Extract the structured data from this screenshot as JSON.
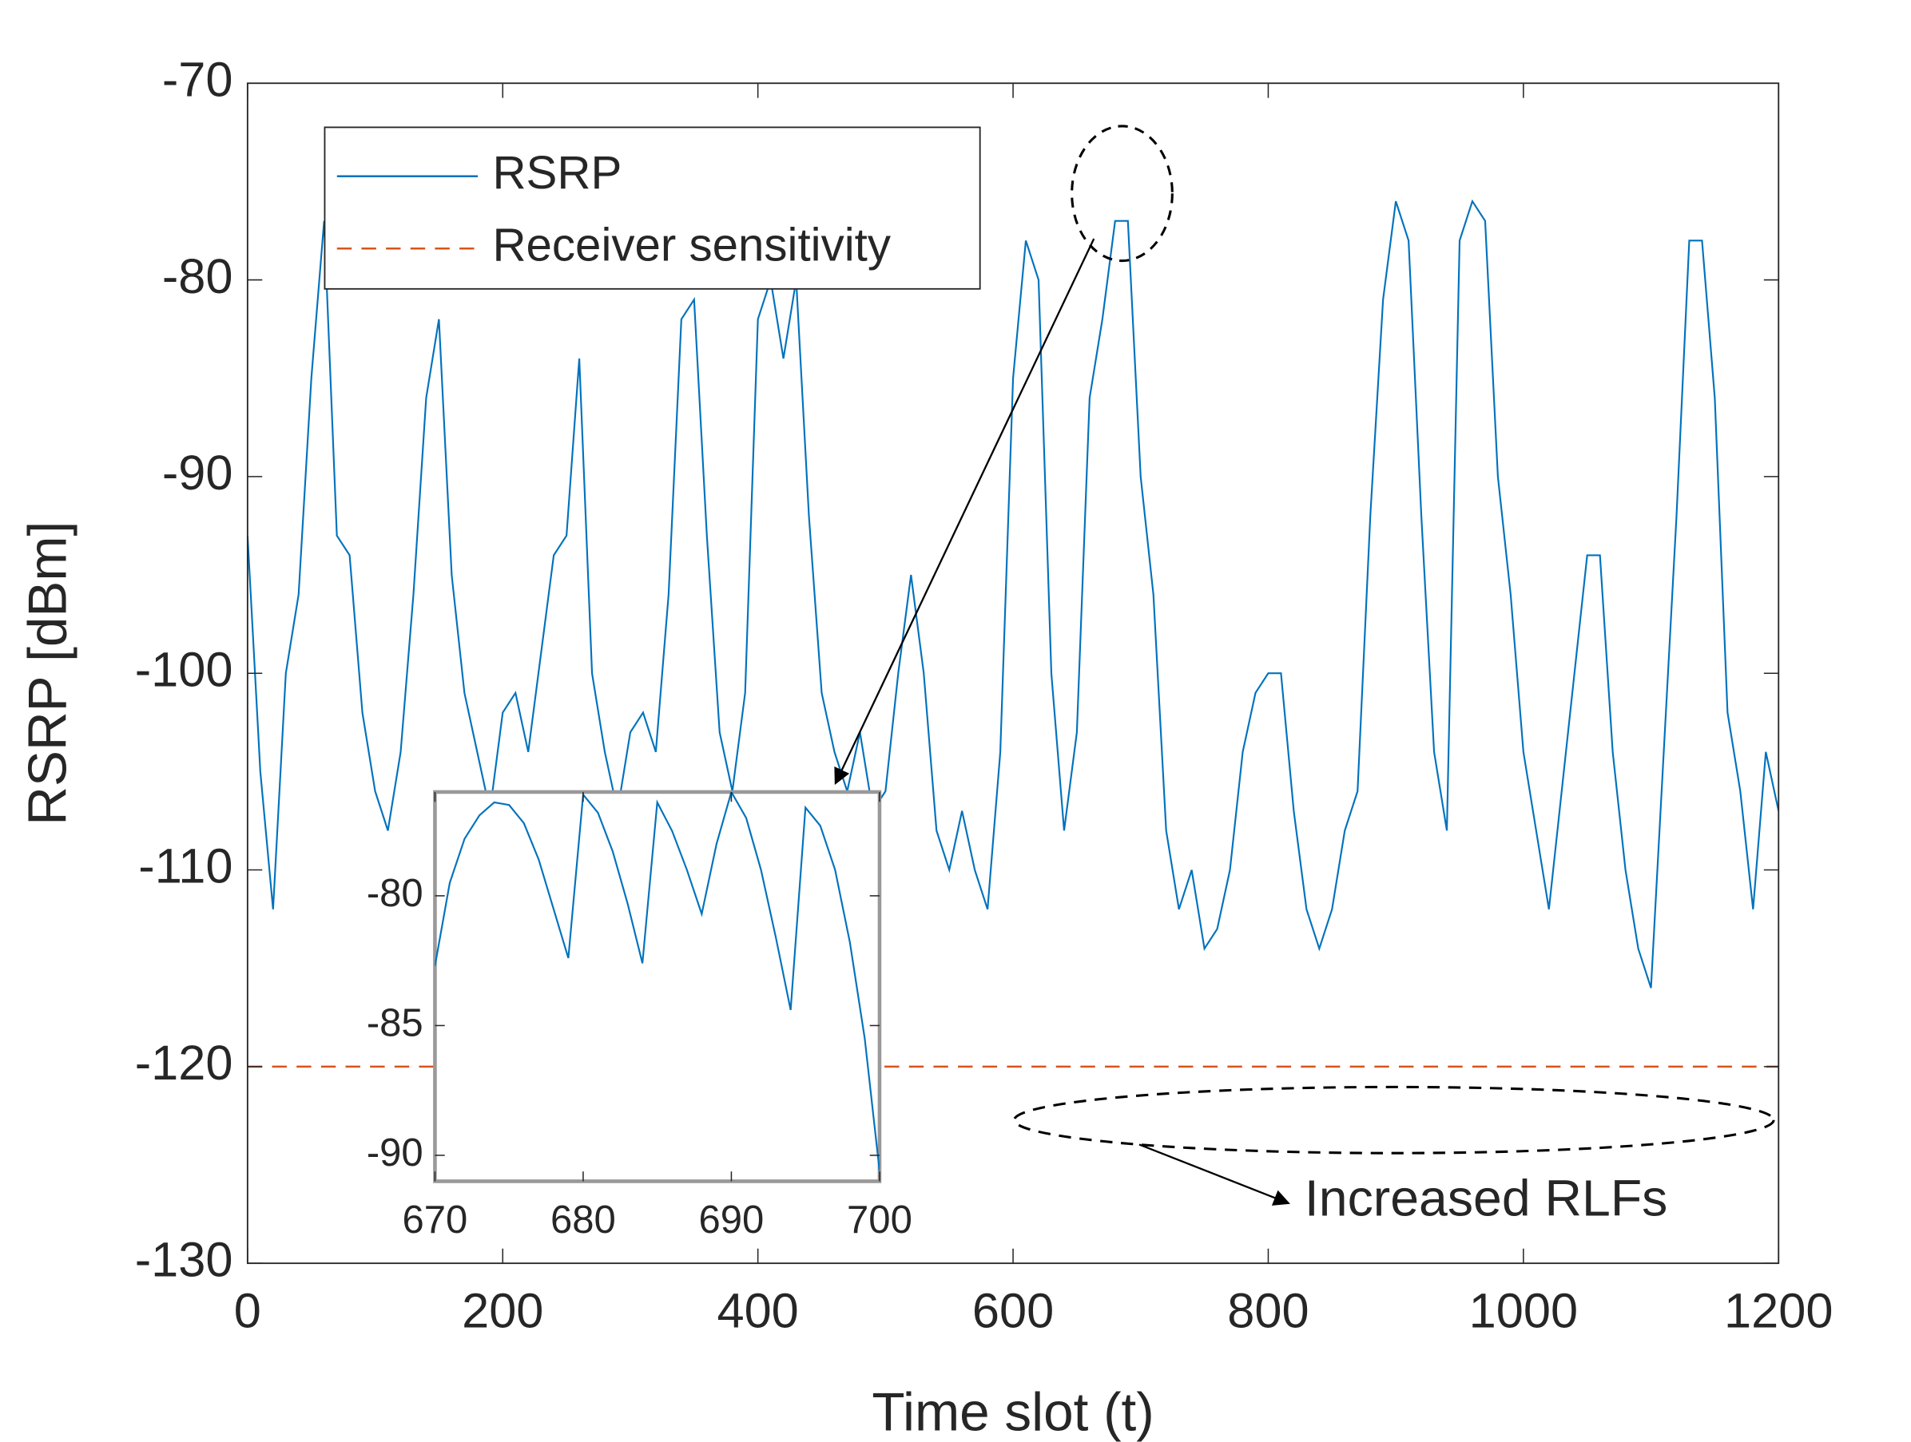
{
  "chart_data": [
    {
      "type": "line",
      "xlabel": "Time slot (t)",
      "ylabel": "RSRP [dBm]",
      "xlim": [
        0,
        1200
      ],
      "ylim": [
        -130,
        -70
      ],
      "xticks": [
        0,
        200,
        400,
        600,
        800,
        1000,
        1200
      ],
      "yticks": [
        -130,
        -120,
        -110,
        -100,
        -90,
        -80,
        -70
      ],
      "legend": "upper left",
      "annotation": "Increased RLFs",
      "series": [
        {
          "name": "RSRP",
          "color": "#0072bd",
          "x": [
            0,
            10,
            20,
            30,
            40,
            50,
            60,
            70,
            80,
            90,
            100,
            110,
            120,
            130,
            140,
            150,
            160,
            170,
            180,
            190,
            200,
            210,
            220,
            230,
            240,
            250,
            260,
            270,
            280,
            290,
            300,
            310,
            320,
            330,
            340,
            350,
            360,
            370,
            380,
            390,
            400,
            410,
            420,
            430,
            440,
            450,
            460,
            470,
            480,
            490,
            500,
            510,
            520,
            530,
            540,
            550,
            560,
            570,
            580,
            590,
            600,
            610,
            620,
            630,
            640,
            650,
            660,
            670,
            680,
            690,
            700,
            710,
            720,
            730,
            740,
            750,
            760,
            770,
            780,
            790,
            800,
            810,
            820,
            830,
            840,
            850,
            860,
            870,
            880,
            890,
            900,
            910,
            920,
            930,
            940,
            950,
            960,
            970,
            980,
            990,
            1000,
            1010,
            1020,
            1030,
            1040,
            1050,
            1060,
            1070,
            1080,
            1090,
            1100,
            1110,
            1120,
            1130,
            1140,
            1150,
            1160,
            1170,
            1180,
            1190,
            1200
          ],
          "values": [
            -93,
            -105,
            -112,
            -100,
            -96,
            -85,
            -77,
            -93,
            -94,
            -102,
            -106,
            -108,
            -104,
            -96,
            -86,
            -82,
            -95,
            -101,
            -104,
            -107,
            -102,
            -101,
            -104,
            -99,
            -94,
            -93,
            -84,
            -100,
            -104,
            -107,
            -103,
            -102,
            -104,
            -96,
            -82,
            -81,
            -93,
            -103,
            -106,
            -101,
            -82,
            -80,
            -84,
            -80,
            -92,
            -101,
            -104,
            -106,
            -103,
            -107,
            -106,
            -100,
            -95,
            -100,
            -108,
            -110,
            -107,
            -110,
            -112,
            -104,
            -85,
            -78,
            -80,
            -100,
            -108,
            -103,
            -86,
            -82,
            -77,
            -77,
            -90,
            -96,
            -108,
            -112,
            -110,
            -114,
            -113,
            -110,
            -104,
            -101,
            -100,
            -100,
            -107,
            -112,
            -114,
            -112,
            -108,
            -106,
            -92,
            -81,
            -76,
            -78,
            -92,
            -104,
            -108,
            -78,
            -76,
            -77,
            -90,
            -96,
            -104,
            -108,
            -112,
            -106,
            -100,
            -94,
            -94,
            -104,
            -110,
            -114,
            -116,
            -104,
            -92,
            -78,
            -78,
            -86,
            -102,
            -106,
            -112,
            -104,
            -107
          ]
        },
        {
          "name": "Receiver sensitivity",
          "color": "#d95319",
          "y": -120
        }
      ]
    },
    {
      "type": "line",
      "xlim": [
        670,
        700
      ],
      "ylim": [
        -91,
        -76
      ],
      "xticks": [
        670,
        680,
        690,
        700
      ],
      "yticks": [
        -80,
        -85,
        -90
      ],
      "series": [
        {
          "color": "#0072bd",
          "x": [
            670,
            671,
            672,
            673,
            674,
            675,
            676,
            677,
            678,
            679,
            680,
            681,
            682,
            683,
            684,
            685,
            686,
            687,
            688,
            689,
            690,
            691,
            692,
            693,
            694,
            695,
            696,
            697,
            698,
            699,
            700
          ],
          "values": [
            -82.7,
            -79.5,
            -77.8,
            -76.9,
            -76.4,
            -76.5,
            -77.2,
            -78.6,
            -80.5,
            -82.4,
            -76.1,
            -76.8,
            -78.3,
            -80.3,
            -82.6,
            -76.4,
            -77.5,
            -79.0,
            -80.7,
            -78.0,
            -76.0,
            -77.0,
            -79.0,
            -81.6,
            -84.4,
            -76.6,
            -77.3,
            -79.0,
            -81.8,
            -85.5,
            -90.6
          ]
        }
      ]
    }
  ]
}
